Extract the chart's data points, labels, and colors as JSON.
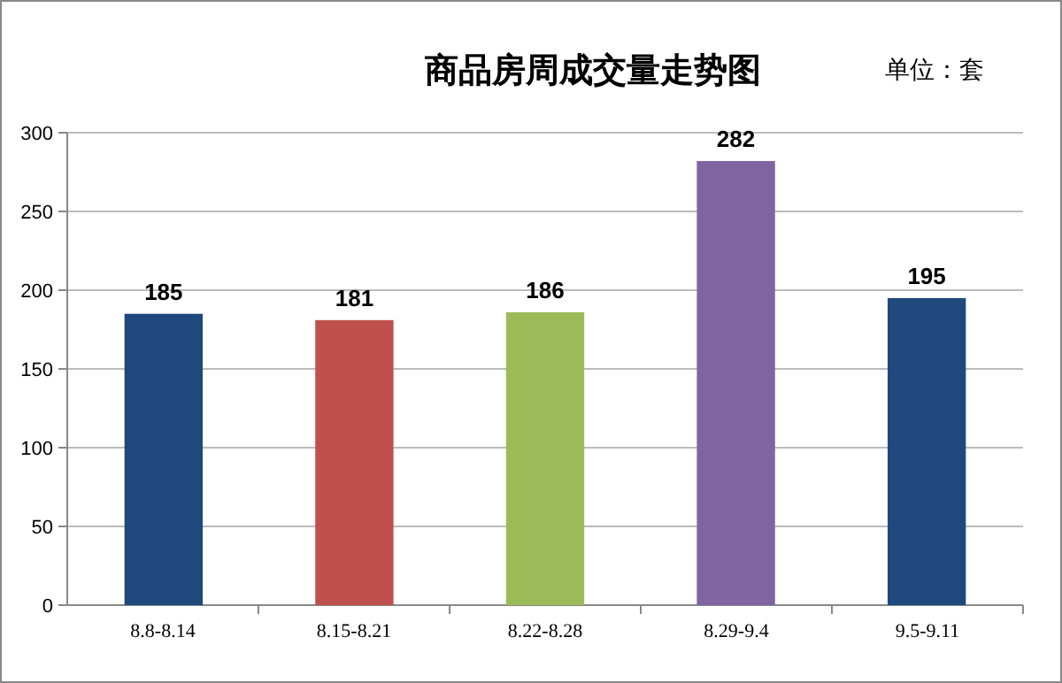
{
  "chart_data": {
    "type": "bar",
    "title": "商品房周成交量走势图",
    "subtitle": "单位：套",
    "categories": [
      "8.8-8.14",
      "8.15-8.21",
      "8.22-8.28",
      "8.29-9.4",
      "9.5-9.11"
    ],
    "values": [
      185,
      181,
      186,
      282,
      195
    ],
    "colors": [
      "#1f497d",
      "#c0504d",
      "#9bbb59",
      "#8064a2",
      "#1f497d"
    ],
    "ylim": [
      0,
      300
    ],
    "yticks": [
      0,
      50,
      100,
      150,
      200,
      250,
      300
    ],
    "grid": "y",
    "data_labels": true
  }
}
